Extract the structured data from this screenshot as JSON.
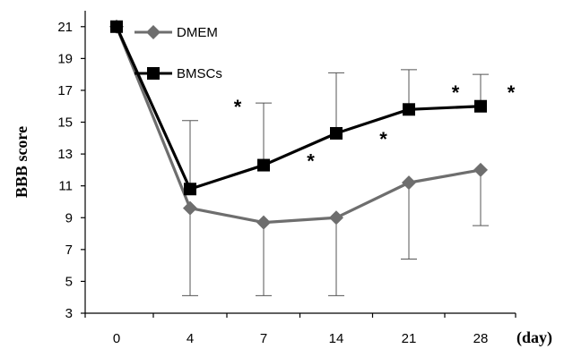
{
  "chart_data": {
    "type": "line",
    "title": "",
    "xlabel": "(day)",
    "ylabel": "BBB score",
    "x": [
      "0",
      "4",
      "7",
      "14",
      "21",
      "28"
    ],
    "ylim": [
      3,
      22
    ],
    "yticks": [
      3,
      5,
      7,
      9,
      11,
      13,
      15,
      17,
      19,
      21
    ],
    "grid": false,
    "legend": "top-left",
    "series": [
      {
        "name": "DMEM",
        "color": "#6e6e6e",
        "marker": "diamond",
        "values": [
          21,
          9.6,
          8.7,
          9.0,
          11.2,
          12.0
        ],
        "error_low": [
          null,
          4.1,
          4.1,
          4.1,
          6.4,
          8.5
        ],
        "error_high": [
          null,
          null,
          null,
          null,
          null,
          null
        ]
      },
      {
        "name": "BMSCs",
        "color": "#000000",
        "marker": "square",
        "values": [
          21,
          10.8,
          12.3,
          14.3,
          15.8,
          16.0
        ],
        "error_low": [
          null,
          null,
          null,
          null,
          null,
          null
        ],
        "error_high": [
          null,
          15.1,
          16.2,
          18.1,
          18.3,
          18.0
        ]
      }
    ],
    "annotations": [
      {
        "text": "*",
        "between": [
          "4",
          "7"
        ],
        "y": 16.2
      },
      {
        "text": "*",
        "between": [
          "7",
          "14"
        ],
        "y": 12.8
      },
      {
        "text": "*",
        "between": [
          "14",
          "21"
        ],
        "y": 14.2
      },
      {
        "text": "*",
        "between": [
          "21",
          "28"
        ],
        "y": 17.1
      },
      {
        "text": "*",
        "between": [
          "28",
          "(day)"
        ],
        "y": 17.1
      }
    ]
  }
}
